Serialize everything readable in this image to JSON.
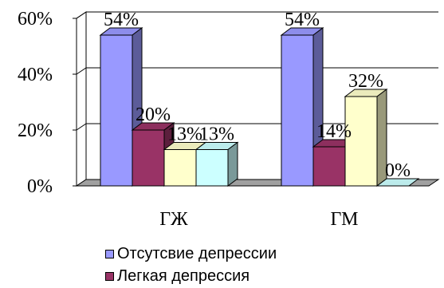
{
  "chart_data": {
    "type": "bar",
    "categories": [
      "ГЖ",
      "ГМ"
    ],
    "yticks": [
      "0%",
      "20%",
      "40%",
      "60%"
    ],
    "ylim": [
      0,
      60
    ],
    "grid": true,
    "series": [
      {
        "name": "Отсутсвие депрессии",
        "values": [
          54,
          54
        ],
        "labels": [
          "54%",
          "54%"
        ],
        "color": "#9999FF"
      },
      {
        "name": "Легкая депрессия",
        "values": [
          20,
          14
        ],
        "labels": [
          "20%",
          "14%"
        ],
        "color": "#993366"
      },
      {
        "name": "",
        "values": [
          13,
          32
        ],
        "labels": [
          "13%",
          "32%"
        ],
        "color": "#FFFFCC"
      },
      {
        "name": "",
        "values": [
          13,
          0
        ],
        "labels": [
          "13%",
          "0%"
        ],
        "color": "#CCFFFF"
      }
    ],
    "legend_position": "bottom"
  }
}
